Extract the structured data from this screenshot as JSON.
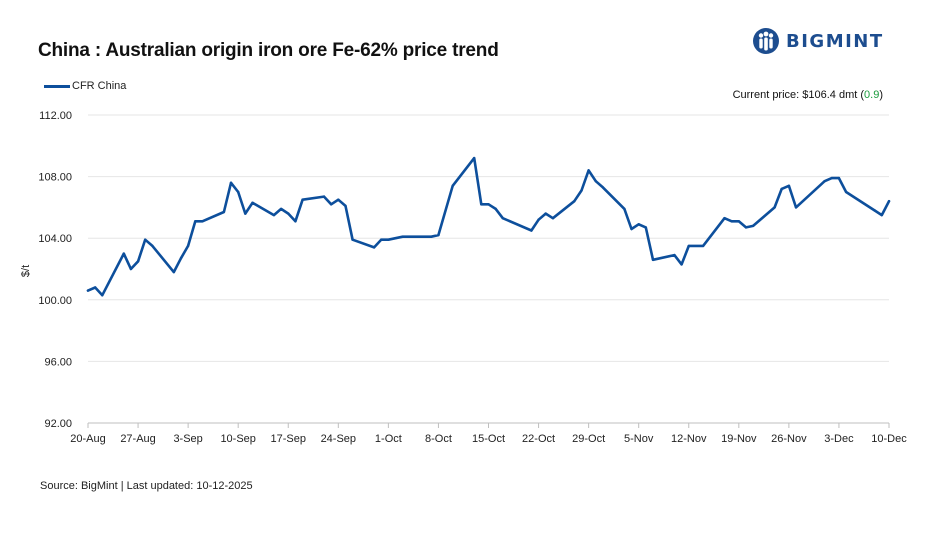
{
  "header": {
    "title": "China : Australian origin iron ore Fe-62% price trend",
    "logo_text": "BIGMINT",
    "logo_icon": "bigmint-people-icon"
  },
  "legend": {
    "label": "CFR China"
  },
  "current_price": {
    "prefix": "Current price: $106.4 dmt (",
    "change": "0.9",
    "suffix": ")"
  },
  "footer": {
    "source": "Source: BigMint | Last updated: 10-12-2025"
  },
  "colors": {
    "line": "#0d4f9c",
    "brand": "#1d4d8f",
    "positive": "#1a9b3c",
    "grid": "#e6e6e6"
  },
  "chart_data": {
    "type": "line",
    "title": "China : Australian origin iron ore Fe-62% price trend",
    "ylabel": "$/t",
    "xlabel": "",
    "ylim": [
      92,
      112
    ],
    "yticks": [
      92,
      96,
      100,
      104,
      108,
      112
    ],
    "ytick_labels": [
      "92.00",
      "96.00",
      "100.00",
      "104.00",
      "108.00",
      "112.00"
    ],
    "xlim": [
      "2025-08-20",
      "2025-12-10"
    ],
    "xticks": [
      "2025-08-20",
      "2025-08-27",
      "2025-09-03",
      "2025-09-10",
      "2025-09-17",
      "2025-09-24",
      "2025-10-01",
      "2025-10-08",
      "2025-10-15",
      "2025-10-22",
      "2025-10-29",
      "2025-11-05",
      "2025-11-12",
      "2025-11-19",
      "2025-11-26",
      "2025-12-03",
      "2025-12-10"
    ],
    "xtick_labels": [
      "20-Aug",
      "27-Aug",
      "3-Sep",
      "10-Sep",
      "17-Sep",
      "24-Sep",
      "1-Oct",
      "8-Oct",
      "15-Oct",
      "22-Oct",
      "29-Oct",
      "5-Nov",
      "12-Nov",
      "19-Nov",
      "26-Nov",
      "3-Dec",
      "10-Dec"
    ],
    "grid": true,
    "legend_position": "top-left",
    "series": [
      {
        "name": "CFR China",
        "points": [
          [
            "2025-08-20",
            100.6
          ],
          [
            "2025-08-21",
            100.8
          ],
          [
            "2025-08-22",
            100.3
          ],
          [
            "2025-08-25",
            103.0
          ],
          [
            "2025-08-26",
            102.0
          ],
          [
            "2025-08-27",
            102.5
          ],
          [
            "2025-08-28",
            103.9
          ],
          [
            "2025-08-29",
            103.5
          ],
          [
            "2025-09-01",
            101.8
          ],
          [
            "2025-09-02",
            102.7
          ],
          [
            "2025-09-03",
            103.5
          ],
          [
            "2025-09-04",
            105.1
          ],
          [
            "2025-09-05",
            105.1
          ],
          [
            "2025-09-08",
            105.7
          ],
          [
            "2025-09-09",
            107.6
          ],
          [
            "2025-09-10",
            107.0
          ],
          [
            "2025-09-11",
            105.6
          ],
          [
            "2025-09-12",
            106.3
          ],
          [
            "2025-09-15",
            105.5
          ],
          [
            "2025-09-16",
            105.9
          ],
          [
            "2025-09-17",
            105.6
          ],
          [
            "2025-09-18",
            105.1
          ],
          [
            "2025-09-19",
            106.5
          ],
          [
            "2025-09-22",
            106.7
          ],
          [
            "2025-09-23",
            106.2
          ],
          [
            "2025-09-24",
            106.5
          ],
          [
            "2025-09-25",
            106.1
          ],
          [
            "2025-09-26",
            103.9
          ],
          [
            "2025-09-29",
            103.4
          ],
          [
            "2025-09-30",
            103.9
          ],
          [
            "2025-10-01",
            103.9
          ],
          [
            "2025-10-02",
            104.0
          ],
          [
            "2025-10-03",
            104.1
          ],
          [
            "2025-10-07",
            104.1
          ],
          [
            "2025-10-08",
            104.2
          ],
          [
            "2025-10-10",
            107.4
          ],
          [
            "2025-10-13",
            109.2
          ],
          [
            "2025-10-14",
            106.2
          ],
          [
            "2025-10-15",
            106.2
          ],
          [
            "2025-10-16",
            105.9
          ],
          [
            "2025-10-17",
            105.3
          ],
          [
            "2025-10-21",
            104.5
          ],
          [
            "2025-10-22",
            105.2
          ],
          [
            "2025-10-23",
            105.6
          ],
          [
            "2025-10-24",
            105.3
          ],
          [
            "2025-10-27",
            106.4
          ],
          [
            "2025-10-28",
            107.1
          ],
          [
            "2025-10-29",
            108.4
          ],
          [
            "2025-10-30",
            107.7
          ],
          [
            "2025-10-31",
            107.3
          ],
          [
            "2025-11-03",
            105.9
          ],
          [
            "2025-11-04",
            104.6
          ],
          [
            "2025-11-05",
            104.9
          ],
          [
            "2025-11-06",
            104.7
          ],
          [
            "2025-11-07",
            102.6
          ],
          [
            "2025-11-10",
            102.9
          ],
          [
            "2025-11-11",
            102.3
          ],
          [
            "2025-11-12",
            103.5
          ],
          [
            "2025-11-14",
            103.5
          ],
          [
            "2025-11-17",
            105.3
          ],
          [
            "2025-11-18",
            105.1
          ],
          [
            "2025-11-19",
            105.1
          ],
          [
            "2025-11-20",
            104.7
          ],
          [
            "2025-11-21",
            104.8
          ],
          [
            "2025-11-24",
            106.0
          ],
          [
            "2025-11-25",
            107.2
          ],
          [
            "2025-11-26",
            107.4
          ],
          [
            "2025-11-27",
            106.0
          ],
          [
            "2025-12-01",
            107.7
          ],
          [
            "2025-12-02",
            107.9
          ],
          [
            "2025-12-03",
            107.9
          ],
          [
            "2025-12-04",
            107.0
          ],
          [
            "2025-12-08",
            105.8
          ],
          [
            "2025-12-09",
            105.5
          ],
          [
            "2025-12-10",
            106.4
          ]
        ]
      }
    ]
  }
}
